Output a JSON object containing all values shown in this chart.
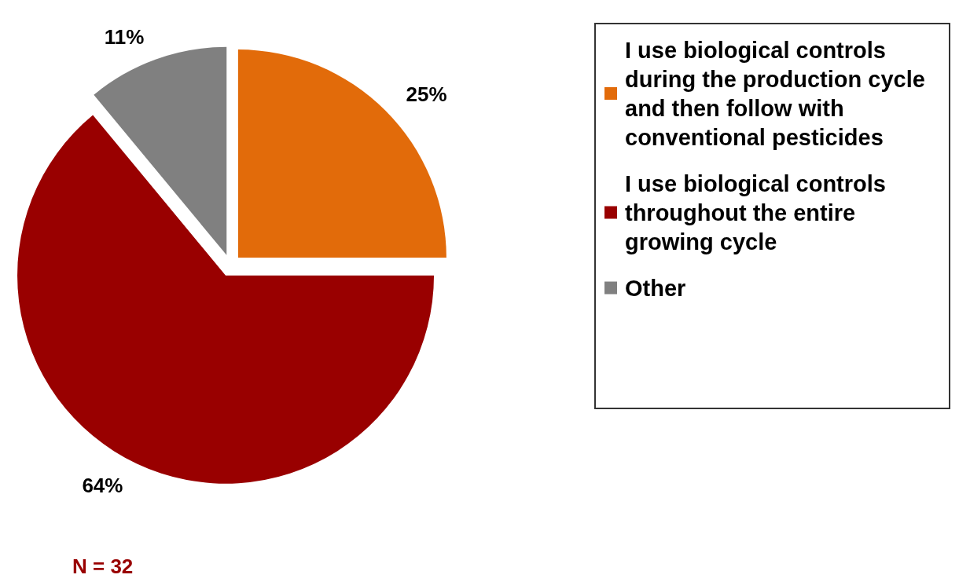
{
  "chart_data": {
    "type": "pie",
    "categories": [
      "I use biological controls during the production cycle and then follow with conventional pesticides",
      "I use biological controls throughout the entire growing cycle",
      "Other"
    ],
    "values": [
      25,
      64,
      11
    ],
    "colors": [
      "#e26b0a",
      "#990000",
      "#808080"
    ],
    "value_labels": [
      "25%",
      "64%",
      "11%"
    ],
    "legend": "right",
    "annotations": [
      "N = 32"
    ]
  }
}
